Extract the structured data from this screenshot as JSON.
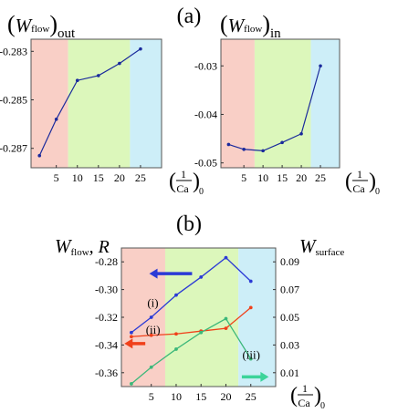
{
  "panel_a_label": "(a)",
  "panel_b_label": "(b)",
  "x_label": {
    "num": "1",
    "den": "Ca",
    "sub": "0"
  },
  "chart_data": [
    {
      "type": "line",
      "panel": "(a) left",
      "ylabel": {
        "main": "W",
        "sub": "flow",
        "suffix": "out"
      },
      "x": [
        1,
        5,
        10,
        15,
        20,
        25
      ],
      "series": [
        {
          "values": [
            -0.2873,
            -0.2858,
            -0.2842,
            -0.284,
            -0.2835,
            -0.2829
          ],
          "color": "#1a2a9c"
        }
      ],
      "xlim": [
        -1,
        30
      ],
      "ylim": [
        -0.2878,
        -0.2825
      ],
      "xticks": [
        "5",
        "10",
        "15",
        "20",
        "25"
      ],
      "yticks": [
        "-0.283",
        "-0.285",
        "-0.287"
      ],
      "bands": [
        {
          "from": -1,
          "to": 7.8,
          "color": "#f9cfc6"
        },
        {
          "from": 7.8,
          "to": 22.5,
          "color": "#dcf7bb"
        },
        {
          "from": 22.5,
          "to": 30,
          "color": "#cdeef8"
        }
      ]
    },
    {
      "type": "line",
      "panel": "(a) right",
      "ylabel": {
        "main": "W",
        "sub": "flow",
        "suffix": "in"
      },
      "x": [
        1,
        5,
        10,
        15,
        20,
        25
      ],
      "series": [
        {
          "values": [
            -0.0462,
            -0.0472,
            -0.0475,
            -0.0458,
            -0.044,
            -0.03
          ],
          "color": "#1a2a9c"
        }
      ],
      "xlim": [
        -1,
        30
      ],
      "ylim": [
        -0.051,
        -0.0245
      ],
      "xticks": [
        "5",
        "10",
        "15",
        "20",
        "25"
      ],
      "yticks": [
        "-0.03",
        "-0.04",
        "-0.05"
      ],
      "bands": [
        {
          "from": -1,
          "to": 7.8,
          "color": "#f9cfc6"
        },
        {
          "from": 7.8,
          "to": 22.5,
          "color": "#dcf7bb"
        },
        {
          "from": 22.5,
          "to": 30,
          "color": "#cdeef8"
        }
      ]
    },
    {
      "type": "line",
      "panel": "(b)",
      "ylabel_left": {
        "main": "W",
        "sub": "flow",
        "suffix": ", R"
      },
      "ylabel_right": {
        "main": "W",
        "sub": "surface"
      },
      "x": [
        1,
        5,
        10,
        15,
        20,
        25
      ],
      "xlim": [
        -1,
        30
      ],
      "ylim_left": [
        -0.37,
        -0.27
      ],
      "ylim_right": [
        0.0,
        0.1
      ],
      "xticks": [
        "5",
        "10",
        "15",
        "20",
        "25"
      ],
      "yticks_left": [
        "-0.28",
        "-0.30",
        "-0.32",
        "-0.34",
        "-0.36"
      ],
      "yticks_right": [
        "0.09",
        "0.07",
        "0.05",
        "0.03",
        "0.01"
      ],
      "series": [
        {
          "label": "(i)",
          "values": [
            -0.331,
            -0.32,
            -0.304,
            -0.291,
            -0.277,
            -0.294
          ],
          "color": "#2b3ad6"
        },
        {
          "label": "(ii)",
          "values": [
            -0.334,
            -0.333,
            -0.332,
            -0.33,
            -0.328,
            -0.313
          ],
          "color": "#f0401a"
        },
        {
          "label": "(iii)",
          "values": [
            -0.368,
            -0.356,
            -0.343,
            -0.331,
            -0.321,
            -0.35
          ],
          "color": "#3cb87a"
        }
      ],
      "bands": [
        {
          "from": -1,
          "to": 7.8,
          "color": "#f9cfc6"
        },
        {
          "from": 7.8,
          "to": 22.5,
          "color": "#dcf7bb"
        },
        {
          "from": 22.5,
          "to": 30,
          "color": "#cdeef8"
        }
      ]
    }
  ]
}
